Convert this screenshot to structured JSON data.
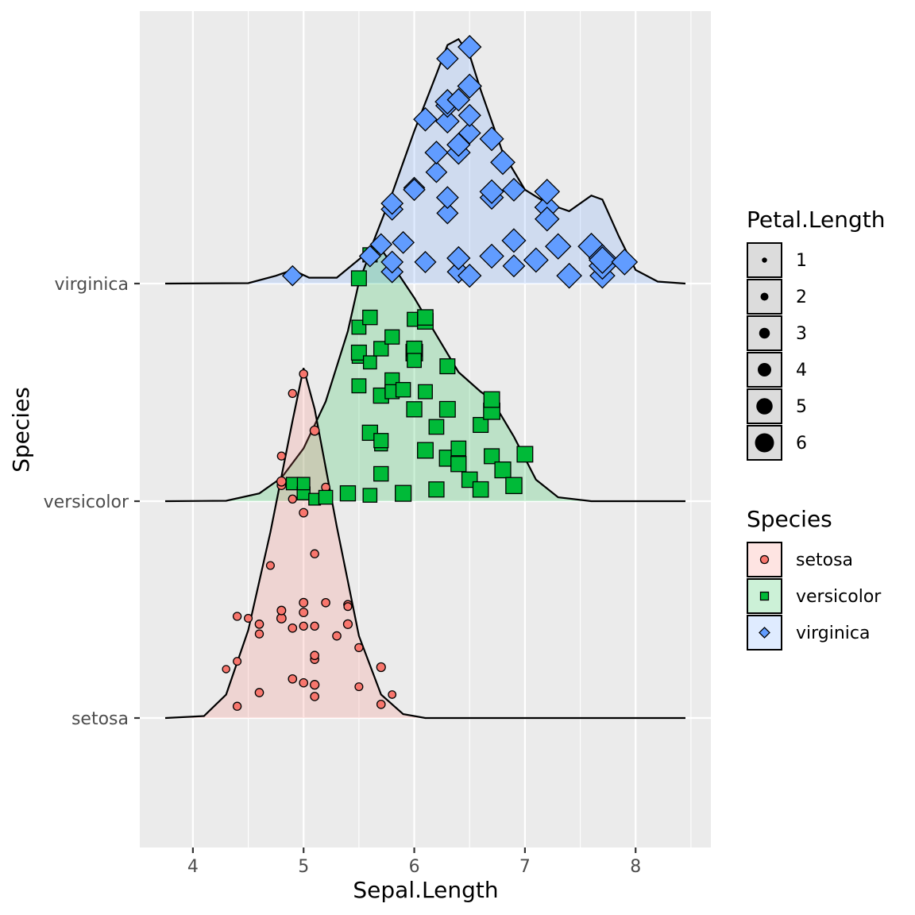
{
  "chart_data": {
    "type": "ridgeline",
    "xlabel": "Sepal.Length",
    "ylabel": "Species",
    "xlim": [
      3.52,
      8.68
    ],
    "x_ticks": [
      4,
      5,
      6,
      7,
      8
    ],
    "x_tick_labels": [
      "4",
      "5",
      "6",
      "7",
      "8"
    ],
    "categories": [
      "setosa",
      "versicolor",
      "virginica"
    ],
    "grid": true,
    "legend_position": "right",
    "colors": {
      "setosa": "#F8766D",
      "versicolor": "#00BA38",
      "virginica": "#619CFF",
      "panel": "#EBEBEB",
      "grid": "#FFFFFF"
    },
    "legends": {
      "size": {
        "title": "Petal.Length",
        "entries": [
          {
            "label": "1",
            "value": 1
          },
          {
            "label": "2",
            "value": 2
          },
          {
            "label": "3",
            "value": 3
          },
          {
            "label": "4",
            "value": 4
          },
          {
            "label": "5",
            "value": 5
          },
          {
            "label": "6",
            "value": 6
          }
        ]
      },
      "fill": {
        "title": "Species",
        "entries": [
          {
            "label": "setosa",
            "shape": "circle",
            "color": "#F8766D"
          },
          {
            "label": "versicolor",
            "shape": "square",
            "color": "#00BA38"
          },
          {
            "label": "virginica",
            "shape": "diamond",
            "color": "#619CFF"
          }
        ]
      }
    },
    "series": [
      {
        "name": "setosa",
        "shape": "circle",
        "density_height_max": 1.79,
        "density": [
          [
            3.75,
            0
          ],
          [
            4.1,
            0.01
          ],
          [
            4.3,
            0.12
          ],
          [
            4.5,
            0.45
          ],
          [
            4.7,
            0.95
          ],
          [
            4.9,
            1.52
          ],
          [
            5.0,
            1.79
          ],
          [
            5.1,
            1.58
          ],
          [
            5.3,
            0.98
          ],
          [
            5.5,
            0.42
          ],
          [
            5.7,
            0.12
          ],
          [
            5.9,
            0.02
          ],
          [
            6.1,
            0
          ],
          [
            8.45,
            0
          ]
        ],
        "points": [
          {
            "x": 4.3,
            "y": 0.25,
            "size": 1.1
          },
          {
            "x": 4.4,
            "y": 0.06,
            "size": 1.4
          },
          {
            "x": 4.4,
            "y": 0.29,
            "size": 1.3
          },
          {
            "x": 4.4,
            "y": 0.52,
            "size": 1.4
          },
          {
            "x": 4.5,
            "y": 0.51,
            "size": 1.3
          },
          {
            "x": 4.6,
            "y": 0.13,
            "size": 1.5
          },
          {
            "x": 4.6,
            "y": 0.43,
            "size": 1.4
          },
          {
            "x": 4.6,
            "y": 0.48,
            "size": 1.5
          },
          {
            "x": 4.7,
            "y": 0.78,
            "size": 1.3
          },
          {
            "x": 4.8,
            "y": 0.51,
            "size": 1.9
          },
          {
            "x": 4.8,
            "y": 0.55,
            "size": 1.6
          },
          {
            "x": 4.8,
            "y": 1.19,
            "size": 1.6
          },
          {
            "x": 4.8,
            "y": 1.34,
            "size": 1.4
          },
          {
            "x": 4.8,
            "y": 1.21,
            "size": 1.9
          },
          {
            "x": 4.9,
            "y": 0.46,
            "size": 1.5
          },
          {
            "x": 4.9,
            "y": 0.2,
            "size": 1.5
          },
          {
            "x": 4.9,
            "y": 1.66,
            "size": 1.4
          },
          {
            "x": 4.9,
            "y": 1.12,
            "size": 1.4
          },
          {
            "x": 5.0,
            "y": 0.54,
            "size": 1.6
          },
          {
            "x": 5.0,
            "y": 0.18,
            "size": 1.5
          },
          {
            "x": 5.0,
            "y": 0.59,
            "size": 1.6
          },
          {
            "x": 5.0,
            "y": 1.76,
            "size": 1.5
          },
          {
            "x": 5.0,
            "y": 1.19,
            "size": 1.6
          },
          {
            "x": 5.0,
            "y": 1.05,
            "size": 1.6
          },
          {
            "x": 5.0,
            "y": 0.47,
            "size": 1.4
          },
          {
            "x": 5.1,
            "y": 0.47,
            "size": 1.4
          },
          {
            "x": 5.1,
            "y": 0.84,
            "size": 1.4
          },
          {
            "x": 5.1,
            "y": 0.11,
            "size": 1.5
          },
          {
            "x": 5.1,
            "y": 0.17,
            "size": 1.7
          },
          {
            "x": 5.1,
            "y": 0.3,
            "size": 1.5
          },
          {
            "x": 5.1,
            "y": 0.32,
            "size": 1.5
          },
          {
            "x": 5.1,
            "y": 1.47,
            "size": 1.9
          },
          {
            "x": 5.2,
            "y": 1.18,
            "size": 1.5
          },
          {
            "x": 5.2,
            "y": 0.59,
            "size": 1.5
          },
          {
            "x": 5.3,
            "y": 0.42,
            "size": 1.5
          },
          {
            "x": 5.4,
            "y": 0.48,
            "size": 1.7
          },
          {
            "x": 5.4,
            "y": 0.58,
            "size": 1.5
          },
          {
            "x": 5.4,
            "y": 0.57,
            "size": 1.3
          },
          {
            "x": 5.5,
            "y": 0.16,
            "size": 1.3
          },
          {
            "x": 5.5,
            "y": 0.36,
            "size": 1.4
          },
          {
            "x": 5.7,
            "y": 0.07,
            "size": 1.5
          },
          {
            "x": 5.7,
            "y": 0.26,
            "size": 1.7
          },
          {
            "x": 5.8,
            "y": 0.12,
            "size": 1.2
          }
        ]
      },
      {
        "name": "versicolor",
        "shape": "square",
        "density_height_max": 1.29,
        "density": [
          [
            3.75,
            0
          ],
          [
            4.3,
            0.002
          ],
          [
            4.6,
            0.04
          ],
          [
            4.8,
            0.12
          ],
          [
            5.0,
            0.27
          ],
          [
            5.2,
            0.51
          ],
          [
            5.4,
            0.87
          ],
          [
            5.5,
            1.12
          ],
          [
            5.6,
            1.27
          ],
          [
            5.7,
            1.29
          ],
          [
            5.8,
            1.21
          ],
          [
            6.0,
            1.04
          ],
          [
            6.2,
            0.85
          ],
          [
            6.4,
            0.66
          ],
          [
            6.6,
            0.56
          ],
          [
            6.7,
            0.52
          ],
          [
            6.9,
            0.33
          ],
          [
            7.1,
            0.11
          ],
          [
            7.3,
            0.02
          ],
          [
            7.6,
            0
          ],
          [
            8.45,
            0
          ]
        ],
        "points": [
          {
            "x": 4.9,
            "y": 0.09,
            "size": 3.3
          },
          {
            "x": 5.0,
            "y": 0.04,
            "size": 3.5
          },
          {
            "x": 5.0,
            "y": 0.09,
            "size": 3.3
          },
          {
            "x": 5.1,
            "y": 0.01,
            "size": 3.0
          },
          {
            "x": 5.2,
            "y": 0.02,
            "size": 3.9
          },
          {
            "x": 5.4,
            "y": 0.04,
            "size": 4.5
          },
          {
            "x": 5.5,
            "y": 0.59,
            "size": 4.0
          },
          {
            "x": 5.5,
            "y": 0.74,
            "size": 3.8
          },
          {
            "x": 5.5,
            "y": 0.76,
            "size": 4.4
          },
          {
            "x": 5.5,
            "y": 0.89,
            "size": 4.0
          },
          {
            "x": 5.5,
            "y": 1.14,
            "size": 4.4
          },
          {
            "x": 5.6,
            "y": 0.03,
            "size": 3.9
          },
          {
            "x": 5.6,
            "y": 0.35,
            "size": 4.5
          },
          {
            "x": 5.6,
            "y": 0.71,
            "size": 3.6
          },
          {
            "x": 5.6,
            "y": 0.94,
            "size": 4.2
          },
          {
            "x": 5.6,
            "y": 1.26,
            "size": 4.1
          },
          {
            "x": 5.7,
            "y": 0.14,
            "size": 4.2
          },
          {
            "x": 5.7,
            "y": 0.29,
            "size": 3.5
          },
          {
            "x": 5.7,
            "y": 0.31,
            "size": 4.1
          },
          {
            "x": 5.7,
            "y": 0.54,
            "size": 4.5
          },
          {
            "x": 5.7,
            "y": 0.78,
            "size": 4.2
          },
          {
            "x": 5.8,
            "y": 0.58,
            "size": 3.9
          },
          {
            "x": 5.8,
            "y": 0.62,
            "size": 4.1
          },
          {
            "x": 5.8,
            "y": 0.56,
            "size": 4.0
          },
          {
            "x": 5.8,
            "y": 0.84,
            "size": 4.1
          },
          {
            "x": 5.9,
            "y": 0.04,
            "size": 4.8
          },
          {
            "x": 5.9,
            "y": 0.57,
            "size": 4.2
          },
          {
            "x": 6.0,
            "y": 0.47,
            "size": 4.5
          },
          {
            "x": 6.0,
            "y": 0.76,
            "size": 5.1
          },
          {
            "x": 6.0,
            "y": 0.78,
            "size": 4.5
          },
          {
            "x": 6.0,
            "y": 0.93,
            "size": 4.0
          },
          {
            "x": 6.0,
            "y": 0.72,
            "size": 4.0
          },
          {
            "x": 6.1,
            "y": 0.26,
            "size": 4.7
          },
          {
            "x": 6.1,
            "y": 0.56,
            "size": 4.0
          },
          {
            "x": 6.1,
            "y": 0.92,
            "size": 4.7
          },
          {
            "x": 6.1,
            "y": 0.94,
            "size": 4.6
          },
          {
            "x": 6.2,
            "y": 0.06,
            "size": 4.5
          },
          {
            "x": 6.2,
            "y": 0.38,
            "size": 4.3
          },
          {
            "x": 6.3,
            "y": 0.22,
            "size": 4.9
          },
          {
            "x": 6.3,
            "y": 0.47,
            "size": 4.7
          },
          {
            "x": 6.3,
            "y": 0.69,
            "size": 4.4
          },
          {
            "x": 6.4,
            "y": 0.19,
            "size": 4.5
          },
          {
            "x": 6.4,
            "y": 0.27,
            "size": 4.3
          },
          {
            "x": 6.5,
            "y": 0.11,
            "size": 4.6
          },
          {
            "x": 6.6,
            "y": 0.06,
            "size": 4.6
          },
          {
            "x": 6.6,
            "y": 0.39,
            "size": 4.4
          },
          {
            "x": 6.7,
            "y": 0.23,
            "size": 4.4
          },
          {
            "x": 6.7,
            "y": 0.46,
            "size": 5.0
          },
          {
            "x": 6.7,
            "y": 0.52,
            "size": 4.7
          },
          {
            "x": 6.8,
            "y": 0.16,
            "size": 4.8
          },
          {
            "x": 6.9,
            "y": 0.08,
            "size": 4.9
          },
          {
            "x": 7.0,
            "y": 0.24,
            "size": 4.7
          }
        ]
      },
      {
        "name": "virginica",
        "shape": "diamond",
        "density_height_max": 1.25,
        "density": [
          [
            3.75,
            0
          ],
          [
            4.5,
            0.002
          ],
          [
            4.75,
            0.04
          ],
          [
            4.9,
            0.07
          ],
          [
            5.05,
            0.03
          ],
          [
            5.3,
            0.03
          ],
          [
            5.6,
            0.17
          ],
          [
            5.8,
            0.46
          ],
          [
            6.0,
            0.78
          ],
          [
            6.2,
            1.07
          ],
          [
            6.3,
            1.22
          ],
          [
            6.4,
            1.25
          ],
          [
            6.5,
            1.17
          ],
          [
            6.6,
            0.99
          ],
          [
            6.8,
            0.67
          ],
          [
            7.0,
            0.48
          ],
          [
            7.2,
            0.41
          ],
          [
            7.4,
            0.37
          ],
          [
            7.6,
            0.45
          ],
          [
            7.7,
            0.43
          ],
          [
            7.85,
            0.24
          ],
          [
            8.0,
            0.07
          ],
          [
            8.2,
            0.01
          ],
          [
            8.45,
            0
          ]
        ],
        "points": [
          {
            "x": 4.9,
            "y": 0.04,
            "size": 4.5
          },
          {
            "x": 5.6,
            "y": 0.14,
            "size": 4.9
          },
          {
            "x": 5.7,
            "y": 0.2,
            "size": 5.0
          },
          {
            "x": 5.8,
            "y": 0.06,
            "size": 5.1
          },
          {
            "x": 5.8,
            "y": 0.38,
            "size": 5.1
          },
          {
            "x": 5.8,
            "y": 0.41,
            "size": 5.1
          },
          {
            "x": 5.9,
            "y": 0.21,
            "size": 5.1
          },
          {
            "x": 6.0,
            "y": 0.49,
            "size": 4.8
          },
          {
            "x": 6.0,
            "y": 0.48,
            "size": 5.0
          },
          {
            "x": 6.1,
            "y": 0.11,
            "size": 4.9
          },
          {
            "x": 6.1,
            "y": 0.84,
            "size": 5.6
          },
          {
            "x": 6.2,
            "y": 0.57,
            "size": 4.8
          },
          {
            "x": 6.2,
            "y": 0.67,
            "size": 5.4
          },
          {
            "x": 6.3,
            "y": 0.36,
            "size": 4.9
          },
          {
            "x": 6.3,
            "y": 0.44,
            "size": 5.1
          },
          {
            "x": 6.3,
            "y": 0.83,
            "size": 5.6
          },
          {
            "x": 6.3,
            "y": 0.91,
            "size": 5.6
          },
          {
            "x": 6.3,
            "y": 0.93,
            "size": 6.0
          },
          {
            "x": 6.3,
            "y": 1.15,
            "size": 5.0
          },
          {
            "x": 6.4,
            "y": 0.06,
            "size": 5.3
          },
          {
            "x": 6.4,
            "y": 0.13,
            "size": 5.5
          },
          {
            "x": 6.4,
            "y": 0.67,
            "size": 5.6
          },
          {
            "x": 6.4,
            "y": 0.71,
            "size": 5.5
          },
          {
            "x": 6.4,
            "y": 0.94,
            "size": 5.3
          },
          {
            "x": 6.5,
            "y": 0.04,
            "size": 5.5
          },
          {
            "x": 6.5,
            "y": 0.77,
            "size": 5.1
          },
          {
            "x": 6.5,
            "y": 0.86,
            "size": 5.2
          },
          {
            "x": 6.5,
            "y": 1.01,
            "size": 5.8
          },
          {
            "x": 6.7,
            "y": 0.14,
            "size": 5.8
          },
          {
            "x": 6.7,
            "y": 0.44,
            "size": 5.6
          },
          {
            "x": 6.7,
            "y": 0.47,
            "size": 5.7
          },
          {
            "x": 6.7,
            "y": 0.74,
            "size": 5.7
          },
          {
            "x": 6.8,
            "y": 0.62,
            "size": 5.9
          },
          {
            "x": 6.9,
            "y": 0.09,
            "size": 5.1
          },
          {
            "x": 6.9,
            "y": 0.22,
            "size": 5.7
          },
          {
            "x": 6.9,
            "y": 0.48,
            "size": 5.4
          },
          {
            "x": 7.1,
            "y": 0.12,
            "size": 5.9
          },
          {
            "x": 7.2,
            "y": 0.39,
            "size": 6.0
          },
          {
            "x": 7.2,
            "y": 0.47,
            "size": 6.1
          },
          {
            "x": 7.2,
            "y": 0.33,
            "size": 5.8
          },
          {
            "x": 7.3,
            "y": 0.19,
            "size": 6.3
          },
          {
            "x": 7.4,
            "y": 0.04,
            "size": 6.1
          },
          {
            "x": 7.6,
            "y": 0.19,
            "size": 6.6
          },
          {
            "x": 7.7,
            "y": 0.04,
            "size": 6.1
          },
          {
            "x": 7.7,
            "y": 0.09,
            "size": 6.7
          },
          {
            "x": 7.7,
            "y": 0.13,
            "size": 6.9
          },
          {
            "x": 7.7,
            "y": 0.12,
            "size": 6.7
          },
          {
            "x": 7.9,
            "y": 0.11,
            "size": 6.4
          },
          {
            "x": 5.8,
            "y": 0.11,
            "size": 5.1
          },
          {
            "x": 6.5,
            "y": 1.21,
            "size": 5.5
          }
        ]
      }
    ]
  }
}
